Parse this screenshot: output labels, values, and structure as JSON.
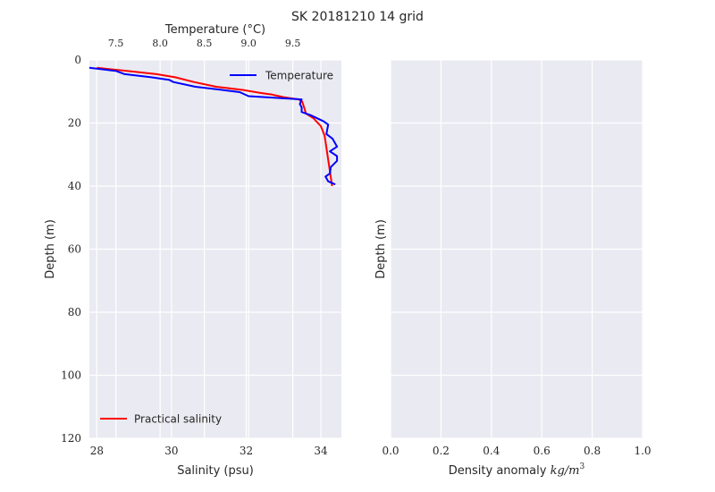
{
  "title": "SK 20181210  14 grid",
  "chart_data": [
    {
      "type": "line",
      "ylabel": "Depth (m)",
      "ylim": [
        120,
        0
      ],
      "yticks": [
        "0",
        "20",
        "40",
        "60",
        "80",
        "100",
        "120"
      ],
      "grid": true,
      "bottom_axis": {
        "label": "Salinity (psu)",
        "xlim": [
          27.8,
          34.55
        ],
        "ticks": [
          "28",
          "30",
          "32",
          "34"
        ]
      },
      "top_axis": {
        "label": "Temperature (°C)",
        "xlim": [
          7.2,
          10.05
        ],
        "ticks": [
          "7.5",
          "8.0",
          "8.5",
          "9.0",
          "9.5"
        ]
      },
      "series": [
        {
          "name": "Practical salinity",
          "axis": "bottom",
          "color": "#ff0000",
          "legend_position": "lower-left",
          "points": [
            [
              28.0,
              2.5
            ],
            [
              28.8,
              3.5
            ],
            [
              29.6,
              4.5
            ],
            [
              30.1,
              5.5
            ],
            [
              30.6,
              7.0
            ],
            [
              31.2,
              8.5
            ],
            [
              31.9,
              9.5
            ],
            [
              32.4,
              10.5
            ],
            [
              32.7,
              11.0
            ],
            [
              33.0,
              11.8
            ],
            [
              33.4,
              12.5
            ],
            [
              33.5,
              13.2
            ],
            [
              33.55,
              15.0
            ],
            [
              33.6,
              17.0
            ],
            [
              33.8,
              18.5
            ],
            [
              34.0,
              21.0
            ],
            [
              34.1,
              24.0
            ],
            [
              34.15,
              28.0
            ],
            [
              34.2,
              32.0
            ],
            [
              34.25,
              36.0
            ],
            [
              34.3,
              40.0
            ]
          ]
        },
        {
          "name": "Temperature",
          "axis": "top",
          "color": "#0000ff",
          "legend_position": "upper-right",
          "points": [
            [
              7.2,
              2.5
            ],
            [
              7.5,
              3.5
            ],
            [
              7.6,
              4.5
            ],
            [
              7.9,
              5.5
            ],
            [
              8.1,
              6.3
            ],
            [
              8.15,
              7.0
            ],
            [
              8.4,
              8.5
            ],
            [
              8.7,
              9.5
            ],
            [
              8.9,
              10.2
            ],
            [
              9.0,
              11.5
            ],
            [
              9.6,
              12.5
            ],
            [
              9.58,
              14.0
            ],
            [
              9.6,
              15.0
            ],
            [
              9.6,
              16.5
            ],
            [
              9.7,
              17.5
            ],
            [
              9.85,
              19.5
            ],
            [
              9.9,
              20.5
            ],
            [
              9.88,
              23.5
            ],
            [
              9.95,
              25.0
            ],
            [
              10.0,
              27.5
            ],
            [
              9.92,
              29.0
            ],
            [
              10.0,
              30.5
            ],
            [
              10.0,
              32.0
            ],
            [
              9.93,
              34.0
            ],
            [
              9.92,
              36.0
            ],
            [
              9.87,
              37.0
            ],
            [
              9.9,
              38.5
            ],
            [
              9.98,
              39.5
            ]
          ]
        }
      ]
    },
    {
      "type": "line",
      "ylabel": "Depth (m)",
      "xlabel": "Density anomaly kg/m³",
      "xlabel_text": "Density anomaly ",
      "xlabel_math": "kg/m",
      "xlabel_sup": "3",
      "xlim": [
        0.0,
        1.0
      ],
      "xticks": [
        "0.0",
        "0.2",
        "0.4",
        "0.6",
        "0.8",
        "1.0"
      ],
      "ylim": [
        120,
        0
      ],
      "grid": true,
      "series": []
    }
  ]
}
